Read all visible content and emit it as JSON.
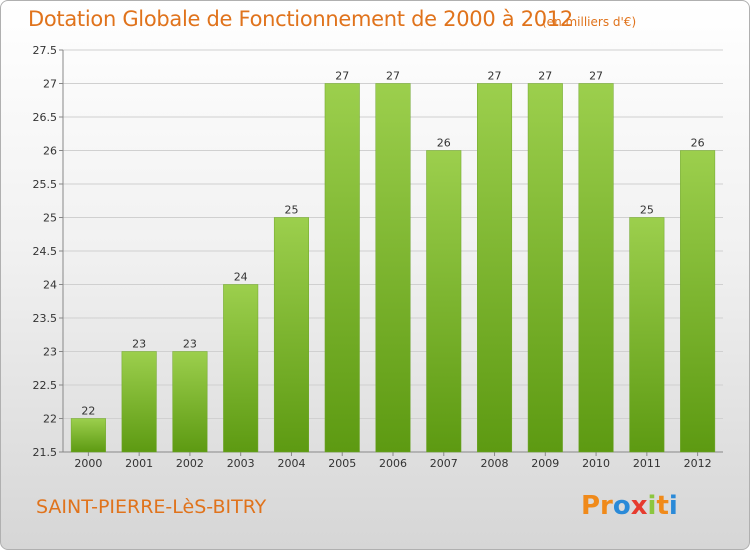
{
  "header": {
    "title": "Dotation Globale de Fonctionnement de 2000 à 2012",
    "subtitle": "(en milliers d'€)"
  },
  "footer": {
    "commune": "SAINT-PIERRE-LèS-BITRY",
    "logo_parts": [
      "Pr",
      "o",
      "x",
      "i",
      "t",
      "i"
    ]
  },
  "colors": {
    "accent": "#e0731c",
    "bar_top": "#9ccf4d",
    "bar_bottom": "#5d9a12",
    "grid": "#d0d0d0"
  },
  "chart_data": {
    "type": "bar",
    "categories": [
      "2000",
      "2001",
      "2002",
      "2003",
      "2004",
      "2005",
      "2006",
      "2007",
      "2008",
      "2009",
      "2010",
      "2011",
      "2012"
    ],
    "values": [
      22,
      23,
      23,
      24,
      25,
      27,
      27,
      26,
      27,
      27,
      27,
      25,
      26
    ],
    "data_labels": [
      "22",
      "23",
      "23",
      "24",
      "25",
      "27",
      "27",
      "26",
      "27",
      "27",
      "27",
      "25",
      "26"
    ],
    "title": "Dotation Globale de Fonctionnement de 2000 à 2012",
    "xlabel": "",
    "ylabel": "",
    "ylim": [
      21.5,
      27.5
    ],
    "yticks": [
      "21.5",
      "22",
      "22.5",
      "23",
      "23.5",
      "24",
      "24.5",
      "25",
      "25.5",
      "26",
      "26.5",
      "27",
      "27.5"
    ],
    "grid": true,
    "legend": "none"
  }
}
